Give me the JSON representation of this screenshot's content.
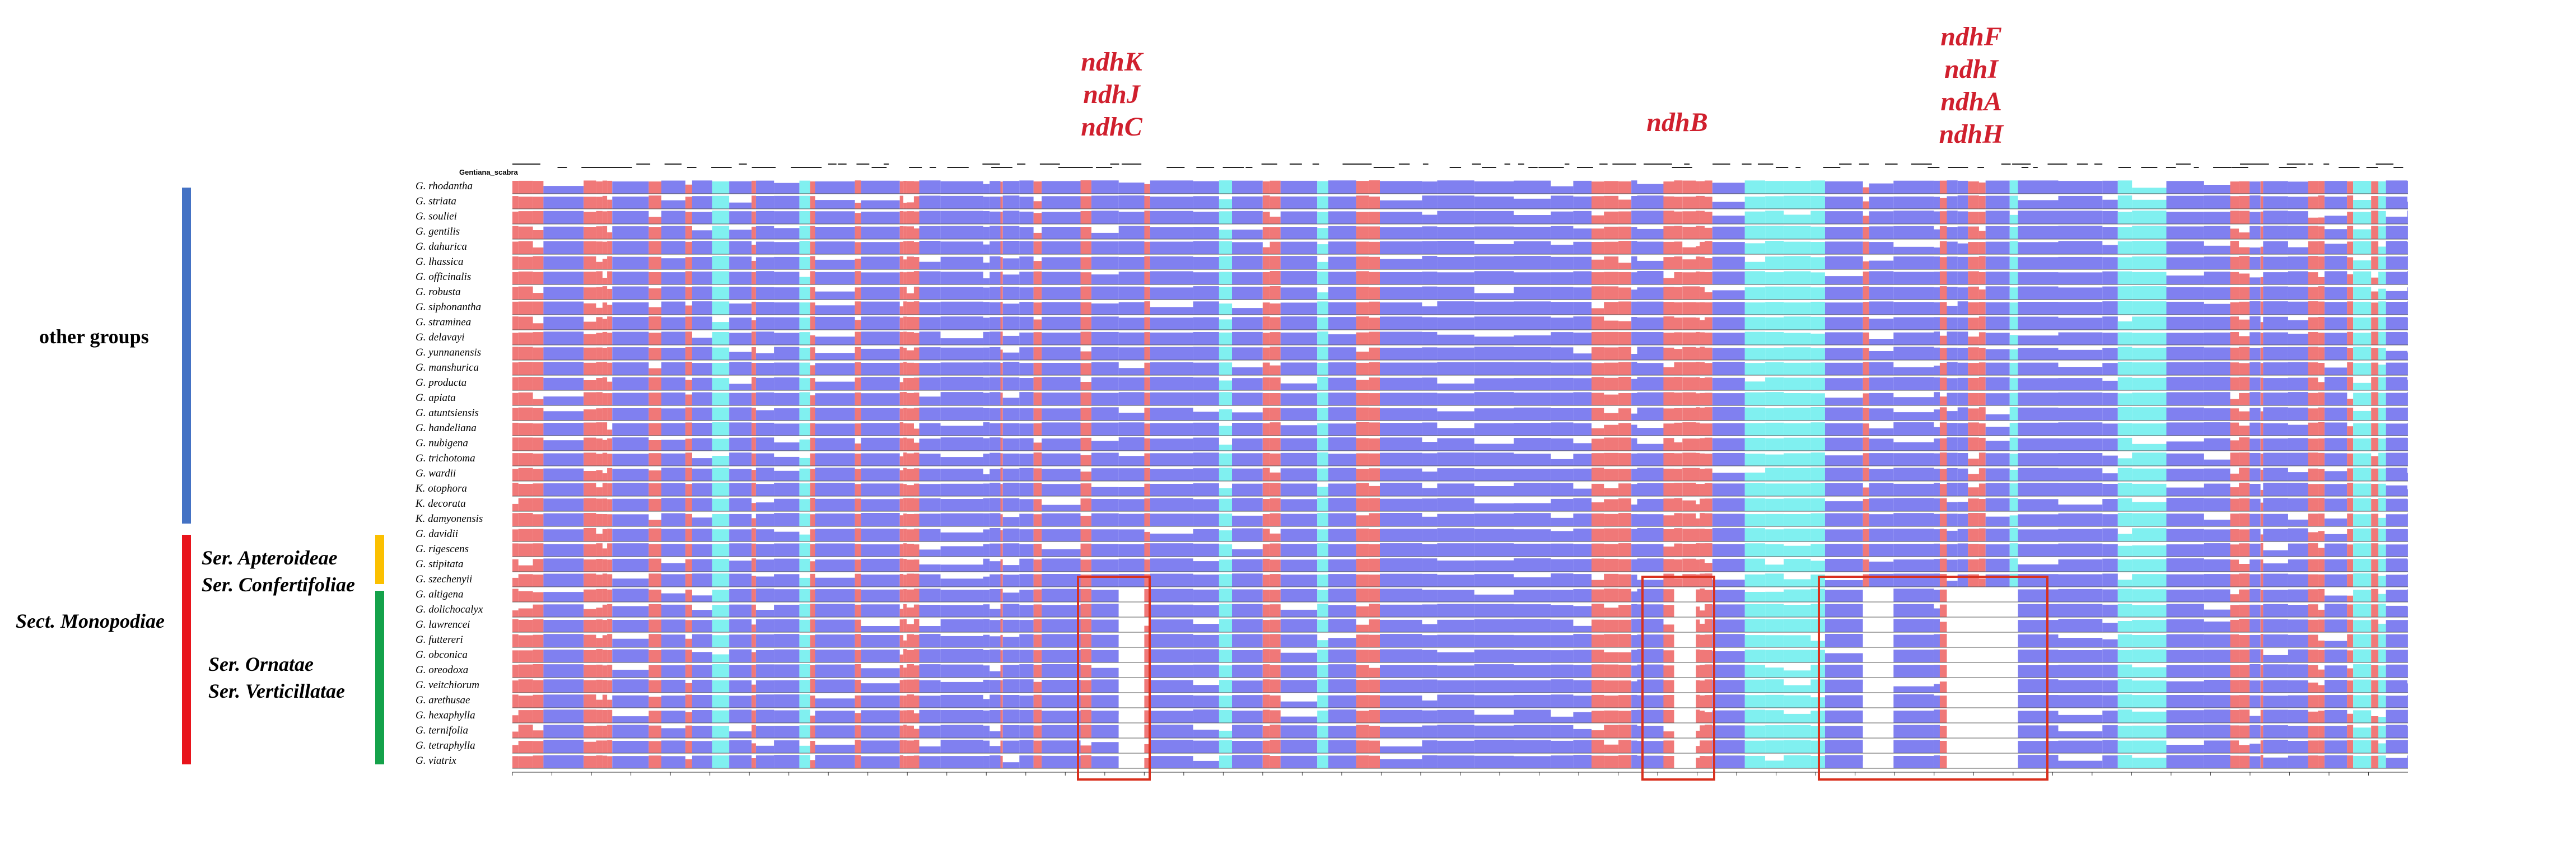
{
  "gene_callouts": [
    {
      "id": "k",
      "lines": [
        "ndhK",
        "ndhJ",
        "ndhC"
      ]
    },
    {
      "id": "b",
      "lines": [
        "ndhB"
      ]
    },
    {
      "id": "f",
      "lines": [
        "ndhF",
        "ndhI",
        "ndhA",
        "ndhH"
      ]
    }
  ],
  "groups": {
    "other": {
      "label": "other groups",
      "color": "#4472c4"
    },
    "monopodiae": {
      "label": "Sect. Monopodiae",
      "color": "#e8141c"
    },
    "apteroideae": {
      "label1": "Ser. Apteroideae",
      "label2": "Ser. Confertifoliae",
      "color": "#fbc000"
    },
    "ornatae": {
      "label1": "Ser. Ornatae",
      "label2": "Ser. Verticillatae",
      "color": "#14a24a"
    }
  },
  "reference_name": "Gentiana_scabra",
  "species": [
    "G. rhodantha",
    "G. striata",
    "G. souliei",
    "G. gentilis",
    "G. dahurica",
    "G. lhassica",
    "G. officinalis",
    "G. robusta",
    "G. siphonantha",
    "G. straminea",
    "G. delavayi",
    "G. yunnanensis",
    "G. manshurica",
    "G. producta",
    "G. apiata",
    "G. atuntsiensis",
    "G. handeliana",
    "G. nubigena",
    "G. trichotoma",
    "G. wardii",
    "K. otophora",
    "K. decorata",
    "K. damyonensis",
    "G. davidii",
    "G. rigescens",
    "G. stipitata",
    "G. szechenyii",
    "G. altigena",
    "G. dolichocalyx",
    "G. lawrencei",
    "G. futtereri",
    "G. obconica",
    "G. oreodoxa",
    "G. veitchiorum",
    "G. arethusae",
    "G. hexaphylla",
    "G. ternifolia",
    "G. tetraphylla",
    "G. viatrix"
  ],
  "colors": {
    "exon": "#8080f0",
    "intron_utr": "#f07878",
    "noncoding": "#80f0f0",
    "gap": "#ffffff",
    "highlight_box": "#d9311e"
  }
}
